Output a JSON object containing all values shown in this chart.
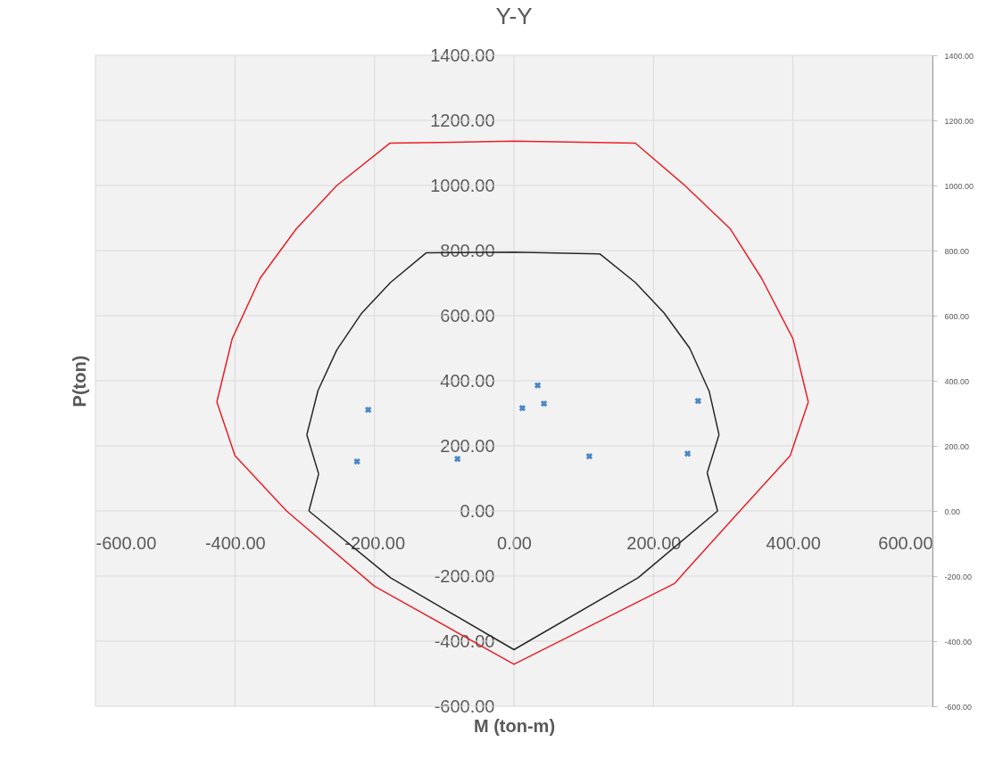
{
  "chart_data": {
    "type": "line",
    "title": "Y-Y",
    "xlabel": "M (ton-m)",
    "ylabel": "P(ton)",
    "xlim": [
      -600,
      600
    ],
    "xticks": [
      {
        "value": -600,
        "label": "-600.00"
      },
      {
        "value": -400,
        "label": "-400.00"
      },
      {
        "value": -200,
        "label": "-200.00"
      },
      {
        "value": 0,
        "label": "0.00"
      },
      {
        "value": 200,
        "label": "200.00"
      },
      {
        "value": 400,
        "label": "400.00"
      },
      {
        "value": 600,
        "label": "600.00"
      }
    ],
    "ylim": [
      -600,
      1400
    ],
    "yticks": [
      {
        "value": -600,
        "label": "-600.00"
      },
      {
        "value": -400,
        "label": "-400.00"
      },
      {
        "value": -200,
        "label": "-200.00"
      },
      {
        "value": 0,
        "label": "0.00"
      },
      {
        "value": 200,
        "label": "200.00"
      },
      {
        "value": 400,
        "label": "400.00"
      },
      {
        "value": 600,
        "label": "600.00"
      },
      {
        "value": 800,
        "label": "800.00"
      },
      {
        "value": 1000,
        "label": "1000.00"
      },
      {
        "value": 1200,
        "label": "1200.00"
      },
      {
        "value": 1400,
        "label": "1400.00"
      }
    ],
    "y2lim": [
      -600,
      1400
    ],
    "y2ticks": [
      {
        "value": -600,
        "label": "-600.00"
      },
      {
        "value": -400,
        "label": "-400.00"
      },
      {
        "value": -200,
        "label": "-200.00"
      },
      {
        "value": 0,
        "label": "0.00"
      },
      {
        "value": 200,
        "label": "200.00"
      },
      {
        "value": 400,
        "label": "400.00"
      },
      {
        "value": 600,
        "label": "600.00"
      },
      {
        "value": 800,
        "label": "800.00"
      },
      {
        "value": 1000,
        "label": "1000.00"
      },
      {
        "value": 1200,
        "label": "1200.00"
      },
      {
        "value": 1400,
        "label": "1400.00"
      }
    ],
    "grid": true,
    "series": [
      {
        "type": "line",
        "color": "#e8202a",
        "line_style": "solid",
        "x": [
          -426,
          -404,
          -364,
          -312,
          -254,
          -178,
          0,
          174,
          245,
          310,
          355,
          400,
          422
        ],
        "values": [
          335,
          529,
          715,
          867,
          1000,
          1130,
          1136,
          1130,
          1000,
          867,
          715,
          529,
          335
        ]
      },
      {
        "type": "line",
        "color": "#e8202a",
        "line_style": "solid",
        "x": [
          -426,
          -400,
          -326,
          -200,
          0,
          230,
          325,
          396,
          422
        ],
        "values": [
          335,
          170,
          0,
          -231,
          -471,
          -223,
          3,
          170,
          335
        ]
      },
      {
        "type": "line",
        "color": "#262626",
        "line_style": "solid",
        "x": [
          -297,
          -281,
          -254,
          -219,
          -177,
          -126,
          0,
          123,
          174,
          215,
          252,
          280,
          294
        ],
        "values": [
          234,
          370,
          495,
          606,
          702,
          793,
          795,
          790,
          702,
          609,
          500,
          367,
          234
        ]
      },
      {
        "type": "line",
        "color": "#262626",
        "line_style": "solid",
        "x": [
          -294,
          -177,
          0,
          178,
          292
        ],
        "values": [
          0,
          -205,
          -426,
          -205,
          0
        ]
      },
      {
        "type": "line",
        "color": "#262626",
        "line_style": "solid",
        "x": [
          -297,
          -280
        ],
        "values": [
          234,
          114
        ]
      },
      {
        "type": "line",
        "color": "#262626",
        "line_style": "solid",
        "x": [
          -294,
          -280
        ],
        "values": [
          0,
          114
        ]
      },
      {
        "type": "line",
        "color": "#262626",
        "line_style": "solid",
        "x": [
          277,
          294
        ],
        "values": [
          117,
          234
        ]
      },
      {
        "type": "line",
        "color": "#262626",
        "line_style": "solid",
        "x": [
          277,
          292
        ],
        "values": [
          117,
          0
        ]
      },
      {
        "type": "scatter",
        "color": "#4a86c8",
        "marker": "cross",
        "x": [
          -209,
          -225,
          -81,
          12,
          34,
          43,
          108,
          249,
          264
        ],
        "values": [
          311,
          152,
          160,
          316,
          386,
          330,
          168,
          176,
          338
        ]
      }
    ]
  }
}
